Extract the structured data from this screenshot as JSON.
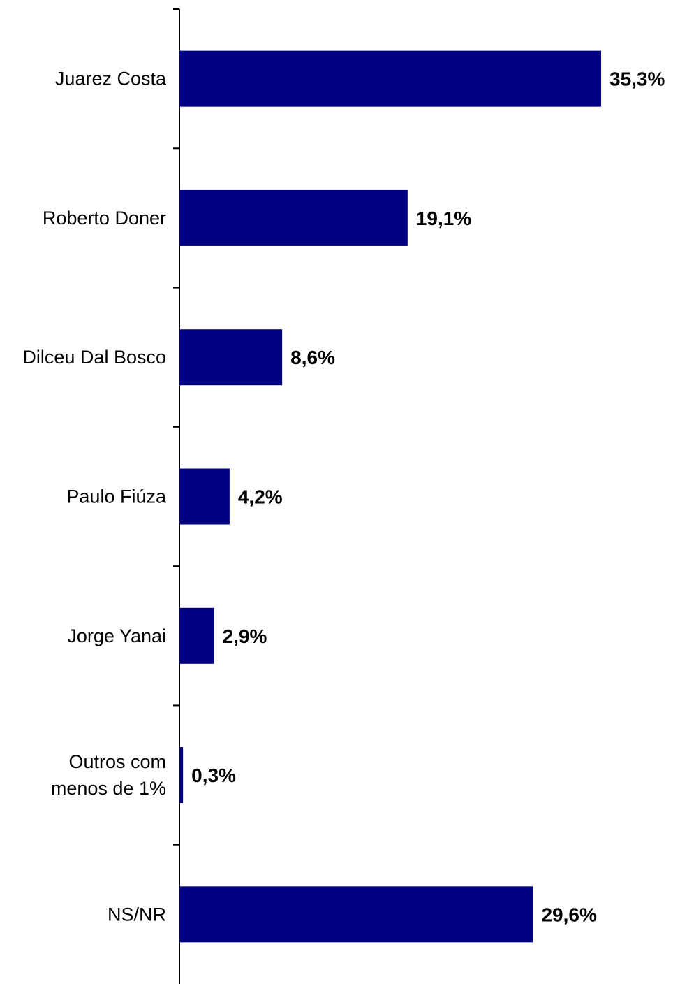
{
  "chart_data": {
    "type": "bar",
    "orientation": "horizontal",
    "categories": [
      [
        "Juarez Costa"
      ],
      [
        "Roberto Doner"
      ],
      [
        "Dilceu Dal Bosco"
      ],
      [
        "Paulo Fiúza"
      ],
      [
        "Jorge Yanai"
      ],
      [
        "Outros com",
        "menos de 1%"
      ],
      [
        "NS/NR"
      ]
    ],
    "values": [
      35.3,
      19.1,
      8.6,
      4.2,
      2.9,
      0.3,
      29.6
    ],
    "value_labels": [
      "35,3%",
      "19,1%",
      "8,6%",
      "4,2%",
      "2,9%",
      "0,3%",
      "29,6%"
    ],
    "xlim": [
      0,
      40
    ],
    "bar_color": "#000080",
    "axis_color": "#000000",
    "grid": false,
    "legend": "none"
  }
}
